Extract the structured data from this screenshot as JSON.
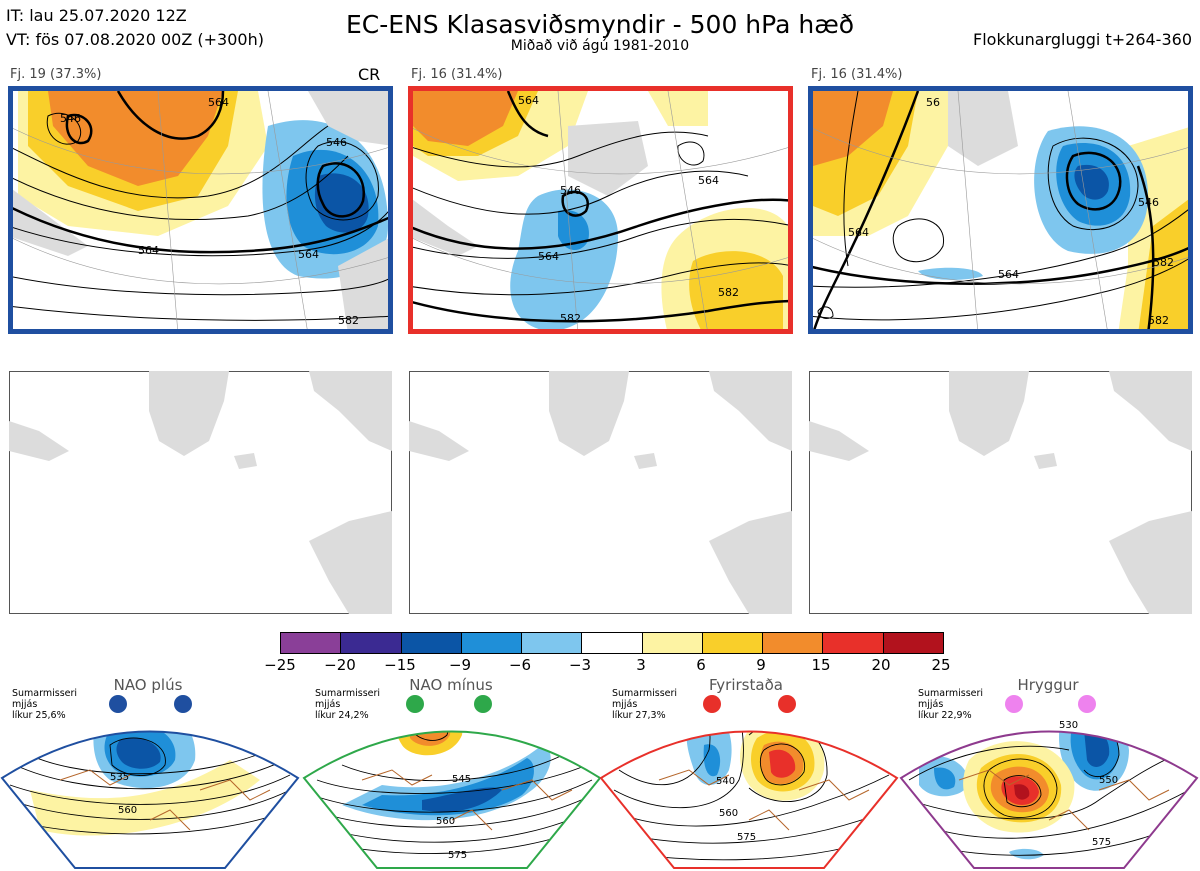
{
  "header": {
    "it_line": "IT: lau 25.07.2020 12Z",
    "vt_line": "VT: fös 07.08.2020 00Z  (+300h)",
    "title": "EC-ENS Klasasviðsmyndir - 500 hPa hæð",
    "subtitle": "Miðað við ágú 1981-2010",
    "window": "Flokkunargluggi t+264-360"
  },
  "clusters": [
    {
      "label": "Fj. 19 (37.3%)",
      "tag": "CR",
      "frame_color": "#1f4fa0",
      "contours": [
        "546",
        "564",
        "546",
        "564",
        "564",
        "582"
      ]
    },
    {
      "label": "Fj. 16 (31.4%)",
      "tag": "",
      "frame_color": "#e8302a",
      "contours": [
        "564",
        "546",
        "564",
        "564",
        "582",
        "582"
      ]
    },
    {
      "label": "Fj. 16 (31.4%)",
      "tag": "",
      "frame_color": "#1f4fa0",
      "contours": [
        "56",
        "564",
        "546",
        "564",
        "582",
        "582"
      ]
    }
  ],
  "colorbar": {
    "ticks": [
      "−25",
      "−20",
      "−15",
      "−9",
      "−6",
      "−3",
      "3",
      "6",
      "9",
      "15",
      "20",
      "25"
    ],
    "colors": [
      "#8a3f98",
      "#3b2a92",
      "#0b55a6",
      "#1f8fd8",
      "#7ec6ee",
      "#ffffff",
      "#fdf3a3",
      "#f9cf2a",
      "#f28c2c",
      "#e8302a",
      "#b2121d"
    ]
  },
  "regimes": [
    {
      "title": "NAO plús",
      "note": [
        "Sumarmisseri",
        "mjjás",
        "líkur 25,6%"
      ],
      "color": "#1f4fa0",
      "contours": [
        "535",
        "560"
      ]
    },
    {
      "title": "NAO mínus",
      "note": [
        "Sumarmisseri",
        "mjjás",
        "líkur 24,2%"
      ],
      "color": "#2ea84a",
      "contours": [
        "545",
        "560",
        "575"
      ]
    },
    {
      "title": "Fyrirstaða",
      "note": [
        "Sumarmisseri",
        "mjjás",
        "líkur 27,3%"
      ],
      "color": "#e8302a",
      "contours": [
        "540",
        "560",
        "575"
      ]
    },
    {
      "title": "Hryggur",
      "note": [
        "Sumarmisseri",
        "mjjás",
        "líkur 22,9%"
      ],
      "color": "#8e3a8e",
      "contours": [
        "530",
        "550",
        "575"
      ]
    }
  ]
}
